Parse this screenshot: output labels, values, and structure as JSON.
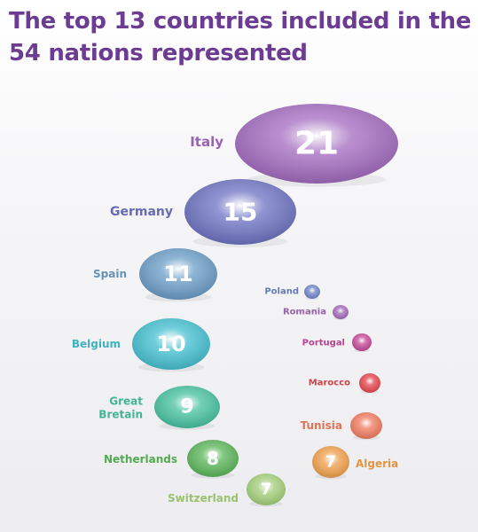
{
  "title": "The top 13 countries included in the 54 nations represented",
  "chart_data": {
    "type": "bubble",
    "title": "The top 13 countries included in the 54 nations represented",
    "bubbles": [
      {
        "country": "Italy",
        "lines": [
          "Italy"
        ],
        "value": 21,
        "show_value": true,
        "color": "#a56cc1"
      },
      {
        "country": "Germany",
        "lines": [
          "Germany"
        ],
        "value": 15,
        "show_value": true,
        "color": "#6f74c4"
      },
      {
        "country": "Spain",
        "lines": [
          "Spain"
        ],
        "value": 11,
        "show_value": true,
        "color": "#6c9fc9"
      },
      {
        "country": "Belgium",
        "lines": [
          "Belgium"
        ],
        "value": 10,
        "show_value": true,
        "color": "#45c2d3"
      },
      {
        "country": "Great Bretain",
        "lines": [
          "Great",
          "Bretain"
        ],
        "value": 9,
        "show_value": true,
        "color": "#48c4a2"
      },
      {
        "country": "Netherlands",
        "lines": [
          "Netherlands"
        ],
        "value": 8,
        "show_value": true,
        "color": "#5cb85a"
      },
      {
        "country": "Switzerland",
        "lines": [
          "Switzerland"
        ],
        "value": 7,
        "show_value": true,
        "color": "#a6d27a"
      },
      {
        "country": "Algeria",
        "lines": [
          "Algeria"
        ],
        "value": 7,
        "show_value": true,
        "color": "#f4a24c"
      },
      {
        "country": "Tunisia",
        "lines": [
          "Tunisia"
        ],
        "value": null,
        "show_value": false,
        "color": "#f37c5e"
      },
      {
        "country": "Marocco",
        "lines": [
          "Marocco"
        ],
        "value": null,
        "show_value": false,
        "color": "#e8454c"
      },
      {
        "country": "Portugal",
        "lines": [
          "Portugal"
        ],
        "value": null,
        "show_value": false,
        "color": "#c8489a"
      },
      {
        "country": "Romania",
        "lines": [
          "Romania"
        ],
        "value": null,
        "show_value": false,
        "color": "#a36bb9"
      },
      {
        "country": "Poland",
        "lines": [
          "Poland"
        ],
        "value": null,
        "show_value": false,
        "color": "#6f86c4"
      }
    ]
  }
}
